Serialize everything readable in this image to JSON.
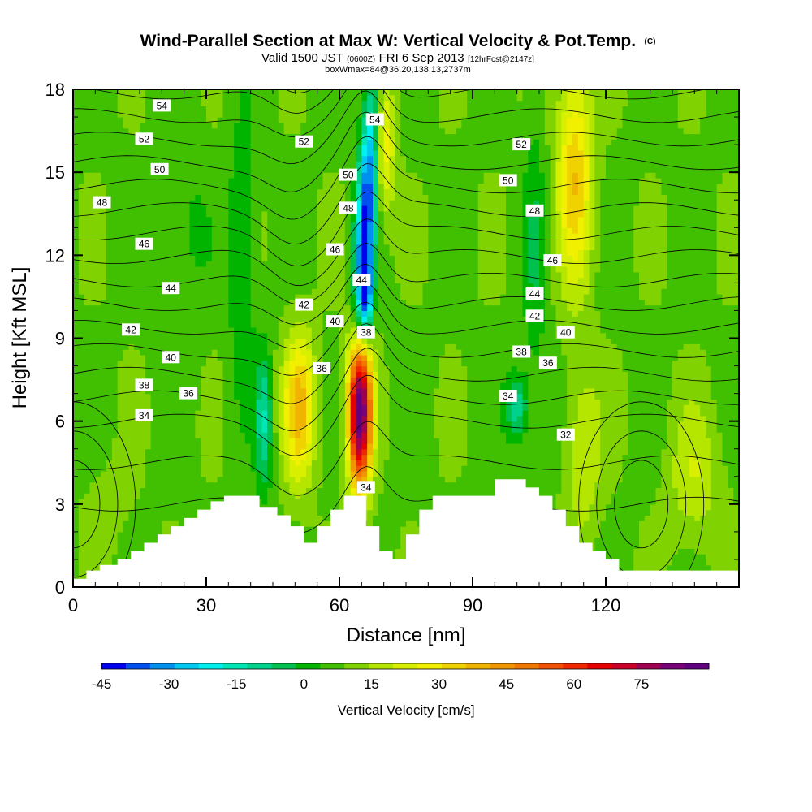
{
  "title": {
    "main": "Wind-Parallel Section at Max W: Vertical Velocity & Pot.Temp.",
    "copyright": "(C)",
    "line2_a": "Valid 1500 JST",
    "line2_b": "(0600Z)",
    "line2_c": "FRI 6 Sep 2013",
    "line2_d": "[12hrFcst@2147z]",
    "line3": "boxWmax=84@36.20,138.13,2737m"
  },
  "chart_data": {
    "type": "heatmap",
    "xlabel": "Distance [nm]",
    "ylabel": "Height [Kft MSL]",
    "xlim": [
      0,
      150
    ],
    "ylim": [
      0,
      18
    ],
    "xticks": [
      0,
      30,
      60,
      90,
      120
    ],
    "yticks": [
      0,
      3,
      6,
      9,
      12,
      15,
      18
    ],
    "colorbar": {
      "label": "Vertical Velocity [cm/s]",
      "range": [
        -45,
        90
      ],
      "step": 5,
      "tick_values": [
        -45,
        -30,
        -15,
        0,
        15,
        30,
        45,
        60,
        75
      ],
      "colors": [
        "#0000f0",
        "#0050f0",
        "#0090f0",
        "#00c8f0",
        "#00f0f0",
        "#00e6b4",
        "#00d28c",
        "#00c050",
        "#00b400",
        "#40c000",
        "#80d200",
        "#b4e600",
        "#d8f000",
        "#f0f000",
        "#f0d200",
        "#f0b400",
        "#f09600",
        "#f07800",
        "#f05000",
        "#f02800",
        "#e60000",
        "#c80028",
        "#a00050",
        "#780078",
        "#600080"
      ]
    },
    "terrain": [
      [
        0,
        0.3
      ],
      [
        3,
        0.3
      ],
      [
        3,
        0.6
      ],
      [
        6,
        0.6
      ],
      [
        6,
        0.8
      ],
      [
        10,
        0.8
      ],
      [
        10,
        1.0
      ],
      [
        13,
        1.0
      ],
      [
        13,
        1.3
      ],
      [
        16,
        1.3
      ],
      [
        16,
        1.6
      ],
      [
        19,
        1.6
      ],
      [
        19,
        1.9
      ],
      [
        22,
        1.9
      ],
      [
        22,
        2.2
      ],
      [
        25,
        2.2
      ],
      [
        25,
        2.5
      ],
      [
        28,
        2.5
      ],
      [
        28,
        2.8
      ],
      [
        31,
        2.8
      ],
      [
        31,
        3.1
      ],
      [
        34,
        3.1
      ],
      [
        34,
        3.3
      ],
      [
        42,
        3.3
      ],
      [
        42,
        2.9
      ],
      [
        46,
        2.9
      ],
      [
        46,
        2.6
      ],
      [
        49,
        2.6
      ],
      [
        49,
        2.2
      ],
      [
        52,
        2.2
      ],
      [
        52,
        1.6
      ],
      [
        55,
        1.6
      ],
      [
        55,
        2.2
      ],
      [
        58,
        2.2
      ],
      [
        58,
        2.8
      ],
      [
        61,
        2.8
      ],
      [
        61,
        3.3
      ],
      [
        66,
        3.3
      ],
      [
        66,
        2.2
      ],
      [
        69,
        2.2
      ],
      [
        69,
        1.3
      ],
      [
        72,
        1.3
      ],
      [
        72,
        1.0
      ],
      [
        75,
        1.0
      ],
      [
        75,
        1.9
      ],
      [
        78,
        1.9
      ],
      [
        78,
        2.8
      ],
      [
        81,
        2.8
      ],
      [
        81,
        3.3
      ],
      [
        95,
        3.3
      ],
      [
        95,
        3.9
      ],
      [
        102,
        3.9
      ],
      [
        102,
        3.6
      ],
      [
        105,
        3.6
      ],
      [
        105,
        3.3
      ],
      [
        108,
        3.3
      ],
      [
        108,
        2.8
      ],
      [
        111,
        2.8
      ],
      [
        111,
        2.2
      ],
      [
        114,
        2.2
      ],
      [
        114,
        1.6
      ],
      [
        117,
        1.6
      ],
      [
        117,
        1.3
      ],
      [
        120,
        1.3
      ],
      [
        120,
        1.0
      ],
      [
        123,
        1.0
      ],
      [
        123,
        0.6
      ],
      [
        150,
        0.6
      ]
    ],
    "wcells": [
      {
        "x": 66,
        "y": 13.5,
        "rx": 2.2,
        "ry": 5,
        "w": -45,
        "tilt": 0.35
      },
      {
        "x": 66,
        "y": 10.5,
        "rx": 1.5,
        "ry": 1.5,
        "w": -30,
        "tilt": 0
      },
      {
        "x": 64.5,
        "y": 6.5,
        "rx": 2.6,
        "ry": 2.8,
        "w": 80,
        "tilt": 0
      },
      {
        "x": 51,
        "y": 6.5,
        "rx": 3.5,
        "ry": 2.6,
        "w": 28,
        "tilt": 0
      },
      {
        "x": 43,
        "y": 6,
        "rx": 1.8,
        "ry": 2.5,
        "w": -18,
        "tilt": 0
      },
      {
        "x": 70,
        "y": 16,
        "rx": 2.5,
        "ry": 2.5,
        "w": 20,
        "tilt": 0
      },
      {
        "x": 38,
        "y": 12,
        "rx": 3,
        "ry": 5,
        "w": -10,
        "tilt": 0
      },
      {
        "x": 113,
        "y": 15,
        "rx": 4,
        "ry": 4,
        "w": 25,
        "tilt": 0
      },
      {
        "x": 104,
        "y": 12,
        "rx": 2.5,
        "ry": 6,
        "w": -8,
        "tilt": 0
      },
      {
        "x": 100,
        "y": 6.5,
        "rx": 2.5,
        "ry": 1.2,
        "w": -18,
        "tilt": 0
      },
      {
        "x": 115,
        "y": 5,
        "rx": 4,
        "ry": 3,
        "w": 12,
        "tilt": 0
      },
      {
        "x": 140,
        "y": 4,
        "rx": 6,
        "ry": 2.5,
        "w": 10,
        "tilt": 0
      },
      {
        "x": 8,
        "y": 3,
        "rx": 6,
        "ry": 2,
        "w": 3,
        "tilt": 0
      },
      {
        "x": 25,
        "y": 13,
        "rx": 5,
        "ry": 4,
        "w": -5,
        "tilt": 0
      }
    ],
    "theta_lines": [
      32,
      33,
      34,
      35,
      36,
      37,
      38,
      39,
      40,
      41,
      42,
      43,
      44,
      45,
      46,
      47,
      48,
      49,
      50,
      51,
      52,
      53,
      54,
      55
    ],
    "contour_labels": [
      {
        "text": "54",
        "x": 20,
        "y": 17.4
      },
      {
        "text": "52",
        "x": 16,
        "y": 16.2
      },
      {
        "text": "50",
        "x": 19.5,
        "y": 15.1
      },
      {
        "text": "48",
        "x": 6.5,
        "y": 13.9
      },
      {
        "text": "46",
        "x": 16,
        "y": 12.4
      },
      {
        "text": "44",
        "x": 22,
        "y": 10.8
      },
      {
        "text": "42",
        "x": 13,
        "y": 9.3
      },
      {
        "text": "40",
        "x": 22,
        "y": 8.3
      },
      {
        "text": "38",
        "x": 16,
        "y": 7.3
      },
      {
        "text": "36",
        "x": 26,
        "y": 7.0
      },
      {
        "text": "34",
        "x": 16,
        "y": 6.2
      },
      {
        "text": "52",
        "x": 52,
        "y": 16.1
      },
      {
        "text": "50",
        "x": 62,
        "y": 14.9
      },
      {
        "text": "48",
        "x": 62,
        "y": 13.7
      },
      {
        "text": "46",
        "x": 59,
        "y": 12.2
      },
      {
        "text": "44",
        "x": 65,
        "y": 11.1
      },
      {
        "text": "42",
        "x": 52,
        "y": 10.2
      },
      {
        "text": "40",
        "x": 59,
        "y": 9.6
      },
      {
        "text": "38",
        "x": 66,
        "y": 9.2
      },
      {
        "text": "36",
        "x": 56,
        "y": 7.9
      },
      {
        "text": "54",
        "x": 68,
        "y": 16.9
      },
      {
        "text": "34",
        "x": 66,
        "y": 3.6
      },
      {
        "text": "52",
        "x": 101,
        "y": 16.0
      },
      {
        "text": "50",
        "x": 98,
        "y": 14.7
      },
      {
        "text": "48",
        "x": 104,
        "y": 13.6
      },
      {
        "text": "46",
        "x": 108,
        "y": 11.8
      },
      {
        "text": "44",
        "x": 104,
        "y": 10.6
      },
      {
        "text": "42",
        "x": 104,
        "y": 9.8
      },
      {
        "text": "40",
        "x": 111,
        "y": 9.2
      },
      {
        "text": "38",
        "x": 101,
        "y": 8.5
      },
      {
        "text": "36",
        "x": 107,
        "y": 8.1
      },
      {
        "text": "34",
        "x": 98,
        "y": 6.9
      },
      {
        "text": "32",
        "x": 111,
        "y": 5.5
      }
    ]
  }
}
